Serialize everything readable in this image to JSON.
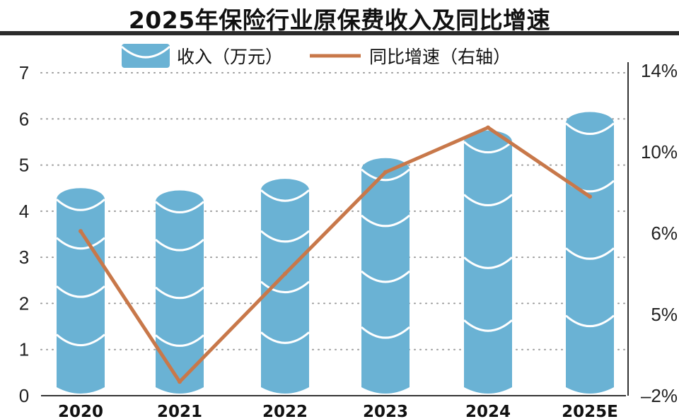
{
  "title": "2025年保险行业原保费收入及同比增速",
  "chart_data": {
    "type": "bar",
    "categories": [
      "2020",
      "2021",
      "2022",
      "2023",
      "2024",
      "2025E"
    ],
    "series": [
      {
        "name": "收入（万元）",
        "kind": "bar",
        "axis": "left",
        "values": [
          4.5,
          4.45,
          4.7,
          5.15,
          5.75,
          6.15
        ],
        "color": "#6ab2d4"
      },
      {
        "name": "同比增速（右轴）",
        "kind": "line",
        "axis": "right",
        "values": [
          6.1,
          -0.8,
          5.5,
          9.0,
          11.2,
          7.8
        ],
        "color": "#c8784a"
      }
    ],
    "left_axis": {
      "ticks": [
        0,
        1,
        2,
        3,
        4,
        5,
        6,
        7
      ],
      "ylim": [
        0,
        7
      ]
    },
    "right_axis": {
      "tick_labels": [
        "–2%",
        "5%",
        "6%",
        "10%",
        "14%"
      ],
      "note": "right-axis tick labels are printed unevenly; line values are approximate readings"
    },
    "grid": "horizontal dotted",
    "legend": "top-center"
  }
}
